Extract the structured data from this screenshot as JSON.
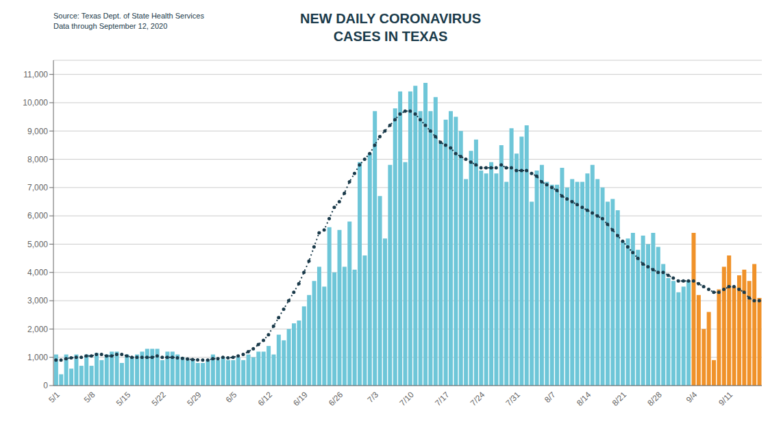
{
  "chart_data": {
    "type": "bar",
    "title": "NEW DAILY CORONAVIRUS\nCASES IN TEXAS",
    "annotations": [
      "Source: Texas Dept. of State Health Services",
      "Data through September 12, 2020"
    ],
    "categories": [
      "5/1",
      null,
      null,
      null,
      null,
      null,
      null,
      "5/8",
      null,
      null,
      null,
      null,
      null,
      null,
      "5/15",
      null,
      null,
      null,
      null,
      null,
      null,
      "5/22",
      null,
      null,
      null,
      null,
      null,
      null,
      "5/29",
      null,
      null,
      null,
      null,
      null,
      null,
      "6/5",
      null,
      null,
      null,
      null,
      null,
      null,
      "6/12",
      null,
      null,
      null,
      null,
      null,
      null,
      "6/19",
      null,
      null,
      null,
      null,
      null,
      null,
      "6/26",
      null,
      null,
      null,
      null,
      null,
      null,
      "7/3",
      null,
      null,
      null,
      null,
      null,
      null,
      "7/10",
      null,
      null,
      null,
      null,
      null,
      null,
      "7/17",
      null,
      null,
      null,
      null,
      null,
      null,
      "7/24",
      null,
      null,
      null,
      null,
      null,
      null,
      "7/31",
      null,
      null,
      null,
      null,
      null,
      null,
      "8/7",
      null,
      null,
      null,
      null,
      null,
      null,
      "8/14",
      null,
      null,
      null,
      null,
      null,
      null,
      "8/21",
      null,
      null,
      null,
      null,
      null,
      null,
      "8/28",
      null,
      null,
      null,
      null,
      null,
      null,
      "9/4",
      null,
      null,
      null,
      null,
      null,
      null,
      "9/11",
      null,
      null,
      null,
      null,
      null,
      null
    ],
    "series": [
      {
        "type": "bar",
        "colors": [
          "#6ec6d8",
          "#6ec6d8",
          "#6ec6d8",
          "#6ec6d8",
          "#6ec6d8",
          "#6ec6d8",
          "#6ec6d8",
          "#6ec6d8",
          "#6ec6d8",
          "#6ec6d8",
          "#6ec6d8",
          "#6ec6d8",
          "#6ec6d8",
          "#6ec6d8",
          "#6ec6d8",
          "#6ec6d8",
          "#6ec6d8",
          "#6ec6d8",
          "#6ec6d8",
          "#6ec6d8",
          "#6ec6d8",
          "#6ec6d8",
          "#6ec6d8",
          "#6ec6d8",
          "#6ec6d8",
          "#6ec6d8",
          "#6ec6d8",
          "#6ec6d8",
          "#6ec6d8",
          "#6ec6d8",
          "#6ec6d8",
          "#6ec6d8",
          "#6ec6d8",
          "#6ec6d8",
          "#6ec6d8",
          "#6ec6d8",
          "#6ec6d8",
          "#6ec6d8",
          "#6ec6d8",
          "#6ec6d8",
          "#6ec6d8",
          "#6ec6d8",
          "#6ec6d8",
          "#6ec6d8",
          "#6ec6d8",
          "#6ec6d8",
          "#6ec6d8",
          "#6ec6d8",
          "#6ec6d8",
          "#6ec6d8",
          "#6ec6d8",
          "#6ec6d8",
          "#6ec6d8",
          "#6ec6d8",
          "#6ec6d8",
          "#6ec6d8",
          "#6ec6d8",
          "#6ec6d8",
          "#6ec6d8",
          "#6ec6d8",
          "#6ec6d8",
          "#6ec6d8",
          "#6ec6d8",
          "#6ec6d8",
          "#6ec6d8",
          "#6ec6d8",
          "#6ec6d8",
          "#6ec6d8",
          "#6ec6d8",
          "#6ec6d8",
          "#6ec6d8",
          "#6ec6d8",
          "#6ec6d8",
          "#6ec6d8",
          "#6ec6d8",
          "#6ec6d8",
          "#6ec6d8",
          "#6ec6d8",
          "#6ec6d8",
          "#6ec6d8",
          "#6ec6d8",
          "#6ec6d8",
          "#6ec6d8",
          "#6ec6d8",
          "#6ec6d8",
          "#6ec6d8",
          "#6ec6d8",
          "#6ec6d8",
          "#6ec6d8",
          "#6ec6d8",
          "#6ec6d8",
          "#6ec6d8",
          "#6ec6d8",
          "#6ec6d8",
          "#6ec6d8",
          "#6ec6d8",
          "#6ec6d8",
          "#6ec6d8",
          "#6ec6d8",
          "#6ec6d8",
          "#6ec6d8",
          "#6ec6d8",
          "#6ec6d8",
          "#6ec6d8",
          "#6ec6d8",
          "#6ec6d8",
          "#6ec6d8",
          "#6ec6d8",
          "#6ec6d8",
          "#6ec6d8",
          "#6ec6d8",
          "#6ec6d8",
          "#6ec6d8",
          "#6ec6d8",
          "#6ec6d8",
          "#6ec6d8",
          "#6ec6d8",
          "#6ec6d8",
          "#6ec6d8",
          "#6ec6d8",
          "#6ec6d8",
          "#6ec6d8",
          "#6ec6d8",
          "#6ec6d8",
          "#6ec6d8",
          "#6ec6d8",
          "#f0922a",
          "#f0922a",
          "#f0922a",
          "#f0922a",
          "#f0922a",
          "#f0922a",
          "#f0922a",
          "#f0922a",
          "#f0922a",
          "#f0922a",
          "#f0922a",
          "#f0922a",
          "#f0922a",
          "#f0922a"
        ],
        "values": [
          1100,
          400,
          1100,
          600,
          1100,
          700,
          1100,
          700,
          1150,
          900,
          1100,
          1200,
          1200,
          800,
          1100,
          1000,
          1100,
          1200,
          1300,
          1300,
          1300,
          900,
          1200,
          1200,
          1100,
          1000,
          900,
          900,
          800,
          800,
          900,
          1100,
          900,
          1000,
          900,
          900,
          1000,
          900,
          1100,
          1000,
          1200,
          1200,
          1400,
          1100,
          1800,
          1600,
          2000,
          2200,
          2300,
          2800,
          3200,
          3700,
          4200,
          3500,
          5600,
          4000,
          5500,
          4200,
          5800,
          4100,
          7900,
          4600,
          8200,
          9700,
          6700,
          5200,
          7800,
          9800,
          10400,
          7900,
          10400,
          10600,
          9700,
          10700,
          9700,
          10200,
          8600,
          9400,
          9700,
          9500,
          9000,
          7300,
          8300,
          8700,
          7600,
          7500,
          7900,
          7500,
          8500,
          7200,
          9100,
          8200,
          8800,
          9200,
          6500,
          7600,
          7800,
          7200,
          7100,
          7100,
          7700,
          7000,
          7300,
          7200,
          7200,
          7500,
          7800,
          7300,
          7000,
          6500,
          6600,
          6200,
          5100,
          5200,
          5400,
          4800,
          5300,
          5000,
          5400,
          4900,
          4300,
          3800,
          3700,
          3300,
          3500,
          3700,
          5400,
          3200,
          2000,
          2600,
          900,
          3400,
          4200,
          4600,
          3500,
          3900,
          4100,
          3700,
          4300,
          3100
        ]
      },
      {
        "type": "line",
        "color": "#1a3a4a",
        "line_style": "dotted",
        "marker": "circle",
        "values": [
          900,
          900,
          950,
          980,
          1000,
          1000,
          1050,
          1050,
          1100,
          1100,
          1050,
          1050,
          1100,
          1100,
          1050,
          1000,
          1000,
          1000,
          1000,
          1000,
          1050,
          1000,
          1000,
          1000,
          980,
          960,
          940,
          920,
          910,
          900,
          900,
          950,
          950,
          1000,
          980,
          1000,
          1050,
          1100,
          1200,
          1300,
          1450,
          1600,
          1800,
          2100,
          2400,
          2700,
          3000,
          3300,
          3600,
          4000,
          4400,
          4900,
          5400,
          5500,
          5900,
          6300,
          6500,
          6800,
          7200,
          7500,
          7800,
          8000,
          8200,
          8500,
          8800,
          9000,
          9200,
          9400,
          9600,
          9700,
          9700,
          9600,
          9400,
          9200,
          9000,
          8800,
          8600,
          8500,
          8400,
          8200,
          8100,
          8000,
          7900,
          7800,
          7700,
          7700,
          7700,
          7700,
          7800,
          7700,
          7700,
          7600,
          7600,
          7600,
          7500,
          7400,
          7200,
          7100,
          7000,
          6900,
          6700,
          6600,
          6500,
          6400,
          6300,
          6200,
          6100,
          6000,
          5900,
          5700,
          5500,
          5300,
          5100,
          4900,
          4700,
          4500,
          4300,
          4200,
          4100,
          4000,
          4000,
          3900,
          3800,
          3700,
          3700,
          3700,
          3700,
          3600,
          3500,
          3400,
          3300,
          3300,
          3400,
          3500,
          3500,
          3400,
          3300,
          3100,
          3000,
          3000
        ]
      }
    ],
    "ylim": [
      0,
      11500
    ],
    "yticks": [
      0,
      {
        "value": 1000,
        "label": "1,000"
      },
      {
        "value": 2000,
        "label": "2,000"
      },
      {
        "value": 3000,
        "label": "3,000"
      },
      {
        "value": 4000,
        "label": "4,000"
      },
      {
        "value": 5000,
        "label": "5,000"
      },
      {
        "value": 6000,
        "label": "6,000"
      },
      {
        "value": 7000,
        "label": "7,000"
      },
      {
        "value": 8000,
        "label": "8,000"
      },
      {
        "value": 9000,
        "label": "9,000"
      },
      {
        "value": 10000,
        "label": "10,000"
      },
      {
        "value": 11000,
        "label": "11,000"
      }
    ],
    "grid": true
  }
}
